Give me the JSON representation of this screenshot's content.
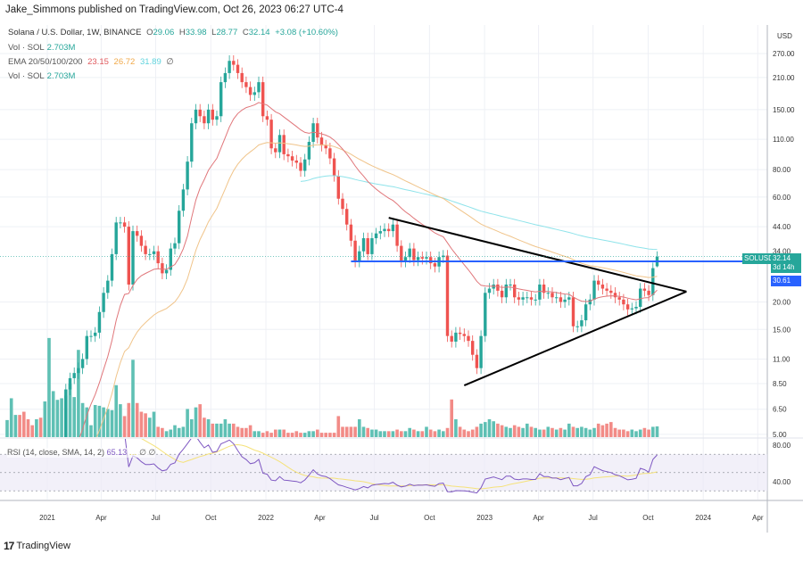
{
  "publisher_line": "Jake_Simmons published on TradingView.com, Oct 26, 2023 06:27 UTC-4",
  "legend": {
    "symbol": "Solana / U.S. Dollar, 1W, BINANCE",
    "open_label": "O",
    "open": "29.06",
    "high_label": "H",
    "high": "33.98",
    "low_label": "L",
    "low": "28.77",
    "close_label": "C",
    "close": "32.14",
    "change": "+3.08 (+10.60%)",
    "vol_label": "Vol · SOL",
    "vol_value": "2.703M",
    "ema_label": "EMA 20/50/100/200",
    "ema20": "23.15",
    "ema50": "26.72",
    "ema100": "31.89",
    "ema200": "∅",
    "vol2_label": "Vol · SOL",
    "vol2_value": "2.703M"
  },
  "rsi_legend": {
    "label": "RSI (14, close, SMA, 14, 2)",
    "value": "65.13",
    "sma_value": "…",
    "extra1": "∅",
    "extra2": "∅"
  },
  "axis_unit": "USD",
  "price_tags": {
    "symbol": "SOLUSD",
    "last": "32.14",
    "countdown": "3d 14h",
    "level": "30.61",
    "hidden_tick": "34.00"
  },
  "branding": {
    "logo_text": "TradingView",
    "logo_mark": "17"
  },
  "colors": {
    "up": "#26a69a",
    "down": "#ef5350",
    "vol_up": "#5fc0b4",
    "vol_down": "#f28b87",
    "ema20": "#e0767a",
    "ema50": "#f0c48a",
    "ema100": "#8ee3ea",
    "rsi": "#7e57c2",
    "rsi_sma": "#f5e27a",
    "hline": "#2962ff",
    "trendline": "#000000"
  },
  "chart_data": {
    "type": "candlestick",
    "interval": "1W",
    "first_week": "2020-10-26",
    "y_scale": "log",
    "ylim": [
      5,
      280
    ],
    "grid": true,
    "y_ticks": [
      270,
      210,
      150,
      110,
      80,
      60,
      44,
      20,
      15,
      11,
      8.5,
      6.5,
      5
    ],
    "x_ticks": [
      {
        "label": "2021",
        "date": "2021-01-01"
      },
      {
        "label": "Apr",
        "date": "2021-04-01"
      },
      {
        "label": "Jul",
        "date": "2021-07-01"
      },
      {
        "label": "Oct",
        "date": "2021-10-01"
      },
      {
        "label": "2022",
        "date": "2022-01-01"
      },
      {
        "label": "Apr",
        "date": "2022-04-01"
      },
      {
        "label": "Jul",
        "date": "2022-07-01"
      },
      {
        "label": "Oct",
        "date": "2022-10-01"
      },
      {
        "label": "2023",
        "date": "2023-01-01"
      },
      {
        "label": "Apr",
        "date": "2023-04-01"
      },
      {
        "label": "Jul",
        "date": "2023-07-01"
      },
      {
        "label": "Oct",
        "date": "2023-10-01"
      },
      {
        "label": "2024",
        "date": "2024-01-01"
      },
      {
        "label": "Apr",
        "date": "2024-04-01"
      }
    ],
    "closes": [
      1.9,
      1.9,
      2.2,
      2.0,
      1.8,
      1.7,
      1.6,
      1.6,
      1.5,
      1.8,
      3.4,
      3.4,
      3.5,
      4.3,
      8.0,
      9.0,
      9.5,
      10,
      11,
      14,
      14,
      14.5,
      18,
      22,
      25,
      33,
      46,
      46,
      44,
      24,
      42,
      40,
      36,
      33,
      33,
      34,
      30,
      27,
      28,
      35,
      37,
      52,
      65,
      87,
      130,
      150,
      140,
      130,
      150,
      135,
      140,
      200,
      220,
      250,
      240,
      220,
      200,
      190,
      175,
      180,
      200,
      140,
      135,
      100,
      96,
      115,
      94,
      92,
      88,
      86,
      79,
      89,
      107,
      130,
      112,
      103,
      100,
      90,
      75,
      59,
      53,
      45,
      38,
      30.6,
      34,
      39,
      33,
      39,
      41,
      42,
      43,
      42,
      45,
      36,
      30.6,
      32,
      35,
      31,
      32,
      31.5,
      32,
      30,
      29,
      32,
      32.5,
      14,
      13.2,
      14.5,
      14.3,
      14,
      13.3,
      11.5,
      10,
      14,
      22,
      23,
      24,
      22.5,
      21,
      24,
      24,
      21,
      20.5,
      21,
      21,
      20.5,
      20.5,
      24,
      22,
      22,
      21,
      21,
      20,
      20.5,
      21,
      15.5,
      15.5,
      16.5,
      19.5,
      20.5,
      25,
      24,
      23,
      22.5,
      22,
      21,
      20.5,
      19.5,
      18.5,
      18.7,
      19,
      23,
      22.5,
      21.5,
      28.5,
      32.14
    ],
    "last_candle": {
      "open": 29.06,
      "high": 33.98,
      "low": 28.77,
      "close": 32.14
    },
    "volume_millions": [
      4.3,
      9.8,
      5.6,
      5.6,
      6.4,
      4.5,
      3.0,
      4.5,
      4.9,
      9.0,
      25,
      11.6,
      9.4,
      9.8,
      10.5,
      13.5,
      10.1,
      22,
      8.6,
      7.5,
      3.0,
      8.1,
      7.9,
      7.5,
      7.1,
      6.8,
      13.1,
      8.3,
      5.3,
      8.6,
      19.5,
      8.6,
      6.4,
      6.0,
      4.9,
      6.4,
      2.6,
      2.3,
      1.5,
      1.9,
      3.0,
      2.3,
      2.6,
      7.1,
      4.5,
      7.5,
      8.3,
      4.9,
      4.5,
      3.4,
      3.4,
      3.4,
      4.5,
      3.4,
      3.4,
      2.6,
      2.3,
      2.3,
      3.0,
      1.5,
      1.5,
      1.1,
      1.5,
      1.1,
      1.9,
      1.9,
      1.9,
      1.1,
      1.1,
      1.5,
      1.1,
      1.1,
      1.5,
      1.5,
      1.9,
      1.1,
      1.1,
      1.1,
      1.1,
      5.3,
      2.6,
      2.6,
      2.6,
      2.6,
      4.5,
      2.6,
      2.3,
      1.9,
      1.9,
      1.5,
      1.5,
      1.5,
      1.5,
      1.9,
      1.5,
      1.5,
      2.3,
      1.9,
      1.5,
      1.5,
      2.6,
      1.9,
      1.5,
      1.9,
      1.5,
      2.3,
      9.5,
      4.5,
      2.6,
      1.9,
      1.5,
      1.9,
      2.6,
      3.4,
      3.8,
      4.5,
      4.0,
      3.4,
      3.0,
      2.6,
      2.3,
      3.0,
      2.6,
      2.3,
      3.4,
      2.6,
      2.3,
      1.9,
      1.9,
      2.6,
      2.3,
      1.9,
      2.3,
      1.9,
      3.4,
      2.6,
      2.3,
      2.6,
      2.3,
      1.9,
      2.3,
      3.4,
      3.0,
      3.4,
      3.8,
      2.3,
      1.9,
      1.9,
      1.5,
      1.9,
      1.5,
      1.9,
      2.3,
      1.9,
      2.6,
      2.703
    ],
    "indicators": [
      "EMA 20",
      "EMA 50",
      "EMA 100",
      "RSI 14 with SMA 14"
    ],
    "rsi_ticks": [
      80,
      40
    ],
    "rsi_bands": [
      70,
      30
    ],
    "drawings": [
      {
        "kind": "trendline",
        "from": {
          "date": "2022-07-25",
          "price": 48.3
        },
        "to": {
          "date": "2023-12-04",
          "price": 22.3
        }
      },
      {
        "kind": "trendline",
        "from": {
          "date": "2022-11-28",
          "price": 8.34
        },
        "to": {
          "date": "2023-12-04",
          "price": 22.3
        }
      },
      {
        "kind": "horizontal",
        "from_date": "2022-05-23",
        "price": 30.61
      }
    ]
  }
}
